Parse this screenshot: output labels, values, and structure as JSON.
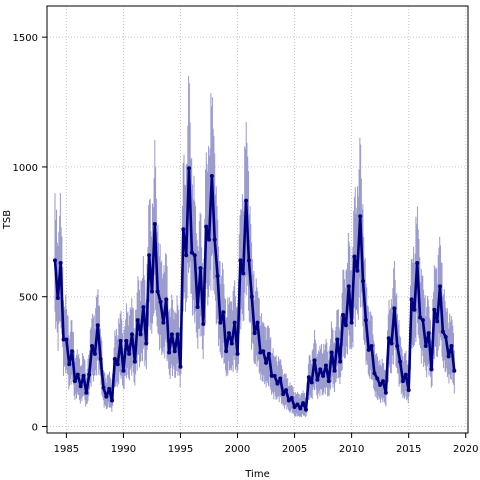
{
  "chart_data": {
    "type": "line",
    "xlabel": "Time",
    "ylabel": "TSB",
    "xlim": [
      1983.3,
      2020.2
    ],
    "ylim": [
      -25,
      1620
    ],
    "x_ticks": [
      1985,
      1990,
      1995,
      2000,
      2005,
      2010,
      2015,
      2020
    ],
    "y_ticks": [
      0,
      500,
      1000,
      1500
    ],
    "grid": true,
    "colors": {
      "line": "#000080",
      "band": "#9a9acd",
      "grid": "#c8c8c8"
    },
    "series": [
      {
        "values": [
          [
            1984.0,
            640
          ],
          [
            1984.25,
            495
          ],
          [
            1984.5,
            630
          ],
          [
            1984.75,
            335
          ],
          [
            1985.0,
            335
          ],
          [
            1985.25,
            240
          ],
          [
            1985.5,
            290
          ],
          [
            1985.75,
            175
          ],
          [
            1986.0,
            200
          ],
          [
            1986.25,
            155
          ],
          [
            1986.5,
            195
          ],
          [
            1986.75,
            130
          ],
          [
            1987.0,
            200
          ],
          [
            1987.25,
            310
          ],
          [
            1987.5,
            280
          ],
          [
            1987.75,
            390
          ],
          [
            1988.0,
            260
          ],
          [
            1988.25,
            150
          ],
          [
            1988.5,
            115
          ],
          [
            1988.75,
            145
          ],
          [
            1989.0,
            100
          ],
          [
            1989.25,
            260
          ],
          [
            1989.5,
            240
          ],
          [
            1989.75,
            330
          ],
          [
            1990.0,
            215
          ],
          [
            1990.25,
            330
          ],
          [
            1990.5,
            280
          ],
          [
            1990.75,
            355
          ],
          [
            1991.0,
            250
          ],
          [
            1991.25,
            410
          ],
          [
            1991.5,
            355
          ],
          [
            1991.75,
            460
          ],
          [
            1992.0,
            320
          ],
          [
            1992.25,
            660
          ],
          [
            1992.5,
            520
          ],
          [
            1992.75,
            780
          ],
          [
            1993.0,
            520
          ],
          [
            1993.25,
            480
          ],
          [
            1993.5,
            400
          ],
          [
            1993.75,
            490
          ],
          [
            1994.0,
            285
          ],
          [
            1994.25,
            355
          ],
          [
            1994.5,
            290
          ],
          [
            1994.75,
            355
          ],
          [
            1995.0,
            230
          ],
          [
            1995.25,
            760
          ],
          [
            1995.5,
            660
          ],
          [
            1995.75,
            995
          ],
          [
            1996.0,
            670
          ],
          [
            1996.25,
            660
          ],
          [
            1996.5,
            460
          ],
          [
            1996.75,
            610
          ],
          [
            1997.0,
            395
          ],
          [
            1997.25,
            770
          ],
          [
            1997.5,
            720
          ],
          [
            1997.75,
            965
          ],
          [
            1998.0,
            720
          ],
          [
            1998.25,
            580
          ],
          [
            1998.5,
            400
          ],
          [
            1998.75,
            440
          ],
          [
            1999.0,
            290
          ],
          [
            1999.25,
            360
          ],
          [
            1999.5,
            320
          ],
          [
            1999.75,
            400
          ],
          [
            2000.0,
            280
          ],
          [
            2000.25,
            640
          ],
          [
            2000.5,
            590
          ],
          [
            2000.75,
            870
          ],
          [
            2001.0,
            640
          ],
          [
            2001.25,
            500
          ],
          [
            2001.5,
            360
          ],
          [
            2001.75,
            400
          ],
          [
            2002.0,
            285
          ],
          [
            2002.25,
            290
          ],
          [
            2002.5,
            245
          ],
          [
            2002.75,
            280
          ],
          [
            2003.0,
            195
          ],
          [
            2003.25,
            195
          ],
          [
            2003.5,
            165
          ],
          [
            2003.75,
            185
          ],
          [
            2004.0,
            125
          ],
          [
            2004.25,
            140
          ],
          [
            2004.5,
            100
          ],
          [
            2004.75,
            110
          ],
          [
            2005.0,
            75
          ],
          [
            2005.25,
            85
          ],
          [
            2005.5,
            70
          ],
          [
            2005.75,
            90
          ],
          [
            2006.0,
            65
          ],
          [
            2006.25,
            190
          ],
          [
            2006.5,
            170
          ],
          [
            2006.75,
            255
          ],
          [
            2007.0,
            180
          ],
          [
            2007.25,
            220
          ],
          [
            2007.5,
            195
          ],
          [
            2007.75,
            235
          ],
          [
            2008.0,
            175
          ],
          [
            2008.25,
            285
          ],
          [
            2008.5,
            215
          ],
          [
            2008.75,
            335
          ],
          [
            2009.0,
            250
          ],
          [
            2009.25,
            430
          ],
          [
            2009.5,
            390
          ],
          [
            2009.75,
            540
          ],
          [
            2010.0,
            400
          ],
          [
            2010.25,
            655
          ],
          [
            2010.5,
            600
          ],
          [
            2010.75,
            810
          ],
          [
            2011.0,
            560
          ],
          [
            2011.25,
            410
          ],
          [
            2011.5,
            295
          ],
          [
            2011.75,
            310
          ],
          [
            2012.0,
            205
          ],
          [
            2012.25,
            185
          ],
          [
            2012.5,
            160
          ],
          [
            2012.75,
            175
          ],
          [
            2013.0,
            130
          ],
          [
            2013.25,
            340
          ],
          [
            2013.5,
            320
          ],
          [
            2013.75,
            455
          ],
          [
            2014.0,
            310
          ],
          [
            2014.25,
            250
          ],
          [
            2014.5,
            175
          ],
          [
            2014.75,
            200
          ],
          [
            2015.0,
            140
          ],
          [
            2015.25,
            490
          ],
          [
            2015.5,
            450
          ],
          [
            2015.75,
            630
          ],
          [
            2016.0,
            420
          ],
          [
            2016.25,
            410
          ],
          [
            2016.5,
            310
          ],
          [
            2016.75,
            360
          ],
          [
            2017.0,
            220
          ],
          [
            2017.25,
            450
          ],
          [
            2017.5,
            405
          ],
          [
            2017.75,
            540
          ],
          [
            2018.0,
            365
          ],
          [
            2018.25,
            345
          ],
          [
            2018.5,
            270
          ],
          [
            2018.75,
            310
          ],
          [
            2019.0,
            215
          ]
        ]
      }
    ]
  }
}
